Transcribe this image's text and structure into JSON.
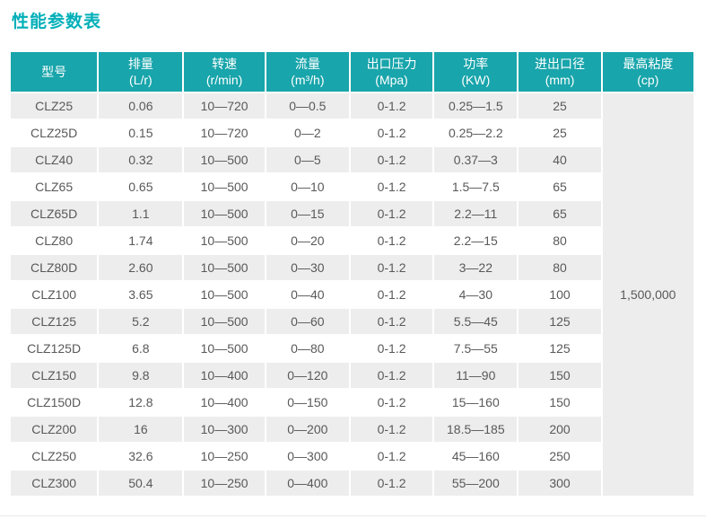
{
  "page": {
    "title": "性能参数表",
    "colors": {
      "title": "#00afb8",
      "header_bg": "#18a5ab",
      "row_alt_bg": "#ededed",
      "merged_cell_bg": "#efefef",
      "body_text": "#595959"
    }
  },
  "table": {
    "columns": [
      {
        "name": "型号",
        "unit": ""
      },
      {
        "name": "排量",
        "unit": "(L/r)"
      },
      {
        "name": "转速",
        "unit": "(r/min)"
      },
      {
        "name": "流量",
        "unit": "(m³/h)"
      },
      {
        "name": "出口压力",
        "unit": "(Mpa)"
      },
      {
        "name": "功率",
        "unit": "(KW)"
      },
      {
        "name": "进出口径",
        "unit": "(mm)"
      },
      {
        "name": "最高粘度",
        "unit": "(cp)"
      }
    ],
    "merged_viscosity": "1,500,000",
    "rows": [
      {
        "model": "CLZ25",
        "displacement": "0.06",
        "speed": "10—720",
        "flow": "0—0.5",
        "pressure": "0-1.2",
        "power": "0.25—1.5",
        "diameter": "25"
      },
      {
        "model": "CLZ25D",
        "displacement": "0.15",
        "speed": "10—720",
        "flow": "0—2",
        "pressure": "0-1.2",
        "power": "0.25—2.2",
        "diameter": "25"
      },
      {
        "model": "CLZ40",
        "displacement": "0.32",
        "speed": "10—500",
        "flow": "0—5",
        "pressure": "0-1.2",
        "power": "0.37—3",
        "diameter": "40"
      },
      {
        "model": "CLZ65",
        "displacement": "0.65",
        "speed": "10—500",
        "flow": "0—10",
        "pressure": "0-1.2",
        "power": "1.5—7.5",
        "diameter": "65"
      },
      {
        "model": "CLZ65D",
        "displacement": "1.1",
        "speed": "10—500",
        "flow": "0—15",
        "pressure": "0-1.2",
        "power": "2.2—11",
        "diameter": "65"
      },
      {
        "model": "CLZ80",
        "displacement": "1.74",
        "speed": "10—500",
        "flow": "0—20",
        "pressure": "0-1.2",
        "power": "2.2—15",
        "diameter": "80"
      },
      {
        "model": "CLZ80D",
        "displacement": "2.60",
        "speed": "10—500",
        "flow": "0—30",
        "pressure": "0-1.2",
        "power": "3—22",
        "diameter": "80"
      },
      {
        "model": "CLZ100",
        "displacement": "3.65",
        "speed": "10—500",
        "flow": "0—40",
        "pressure": "0-1.2",
        "power": "4—30",
        "diameter": "100"
      },
      {
        "model": "CLZ125",
        "displacement": "5.2",
        "speed": "10—500",
        "flow": "0—60",
        "pressure": "0-1.2",
        "power": "5.5—45",
        "diameter": "125"
      },
      {
        "model": "CLZ125D",
        "displacement": "6.8",
        "speed": "10—500",
        "flow": "0—80",
        "pressure": "0-1.2",
        "power": "7.5—55",
        "diameter": "125"
      },
      {
        "model": "CLZ150",
        "displacement": "9.8",
        "speed": "10—400",
        "flow": "0—120",
        "pressure": "0-1.2",
        "power": "11—90",
        "diameter": "150"
      },
      {
        "model": "CLZ150D",
        "displacement": "12.8",
        "speed": "10—400",
        "flow": "0—150",
        "pressure": "0-1.2",
        "power": "15—160",
        "diameter": "150"
      },
      {
        "model": "CLZ200",
        "displacement": "16",
        "speed": "10—300",
        "flow": "0—200",
        "pressure": "0-1.2",
        "power": "18.5—185",
        "diameter": "200"
      },
      {
        "model": "CLZ250",
        "displacement": "32.6",
        "speed": "10—250",
        "flow": "0—300",
        "pressure": "0-1.2",
        "power": "45—160",
        "diameter": "250"
      },
      {
        "model": "CLZ300",
        "displacement": "50.4",
        "speed": "10—250",
        "flow": "0—400",
        "pressure": "0-1.2",
        "power": "55—200",
        "diameter": "300"
      }
    ]
  }
}
